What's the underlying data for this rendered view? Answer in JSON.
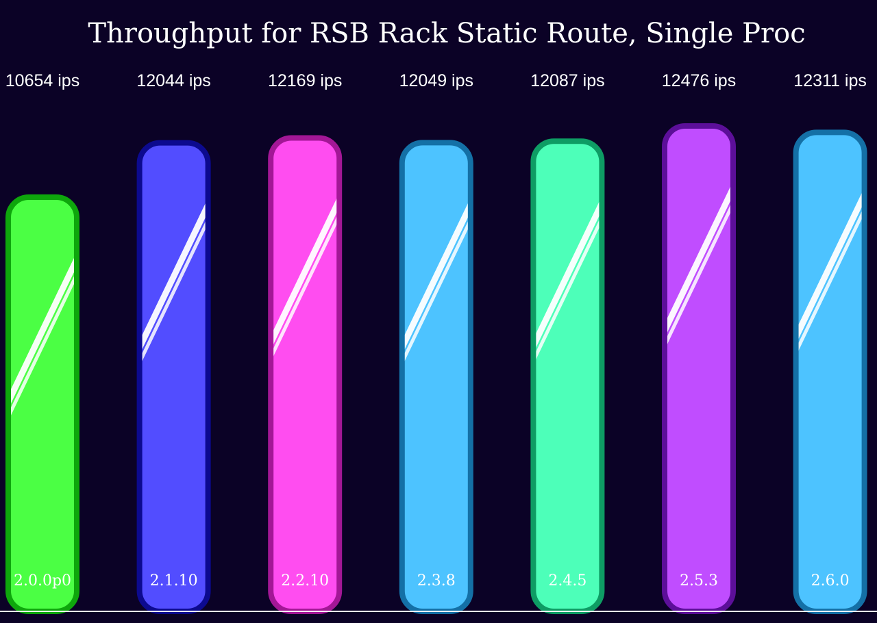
{
  "chart_data": {
    "type": "bar",
    "title": "Throughput for RSB Rack Static Route, Single Proc",
    "categories": [
      "2.0.0p0",
      "2.1.10",
      "2.2.10",
      "2.3.8",
      "2.4.5",
      "2.5.3",
      "2.6.0"
    ],
    "values": [
      10654,
      12044,
      12169,
      12049,
      12087,
      12476,
      12311
    ],
    "value_labels": [
      "10654 ips",
      "12044 ips",
      "12169 ips",
      "12049 ips",
      "12087 ips",
      "12476 ips",
      "12311 ips"
    ],
    "xlabel": "",
    "ylabel": "",
    "ylim": [
      0,
      13000
    ],
    "grid": false,
    "legend": "none",
    "colors": {
      "background": "#0b0226",
      "axis_line": "#ffffff",
      "text": "#ffffff",
      "bars": [
        {
          "fill": "#4bff44",
          "border": "#0ea60c"
        },
        {
          "fill": "#524dff",
          "border": "#0c0a8f"
        },
        {
          "fill": "#ff4df0",
          "border": "#a31796"
        },
        {
          "fill": "#4dc3ff",
          "border": "#1470a6"
        },
        {
          "fill": "#4dffb9",
          "border": "#0e9c64"
        },
        {
          "fill": "#c04dff",
          "border": "#5c0f99"
        },
        {
          "fill": "#4dc3ff",
          "border": "#1470a6"
        }
      ]
    }
  }
}
